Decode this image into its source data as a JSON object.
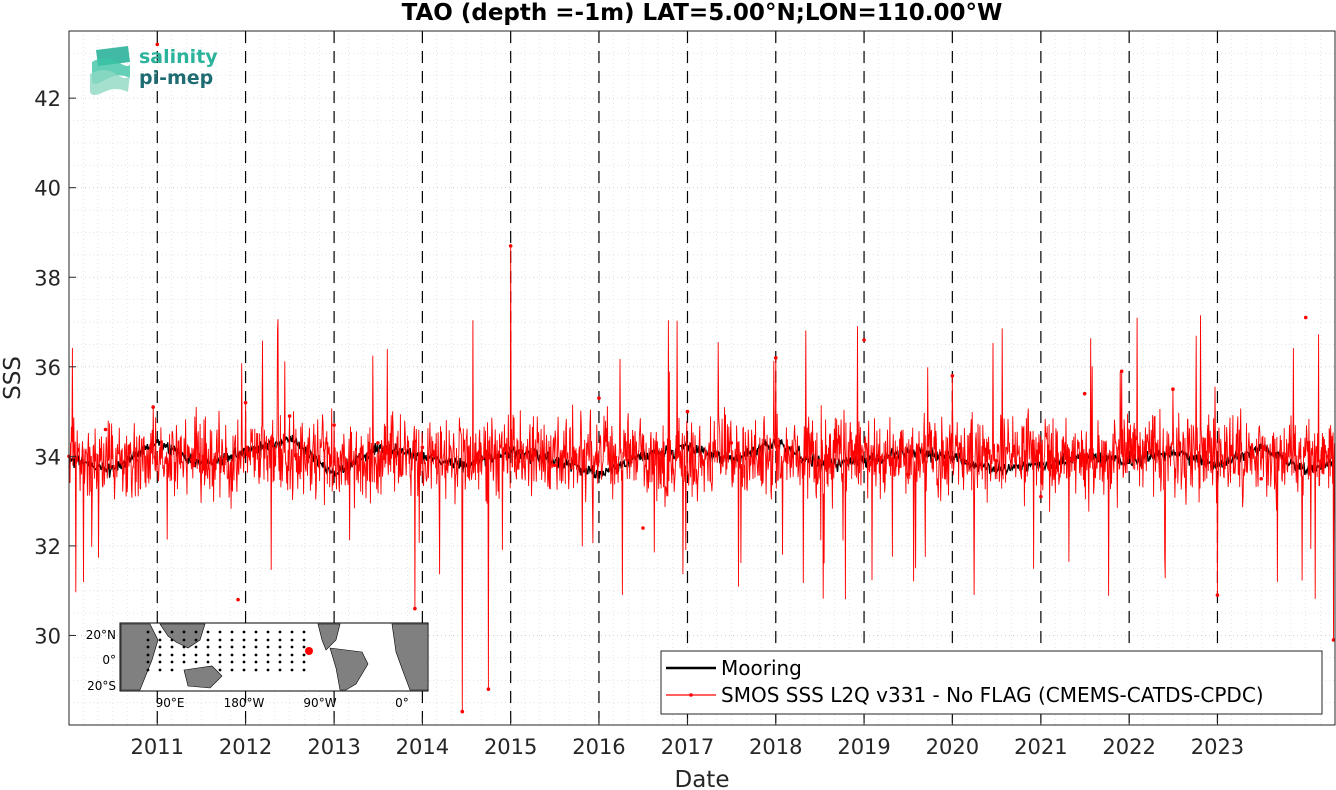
{
  "chart_data": {
    "type": "line",
    "title": "TAO (depth =-1m) LAT=5.00°N;LON=110.00°W",
    "xlabel": "Date",
    "ylabel": "SSS",
    "xlim": [
      "2010-01-01",
      "2024-05-01"
    ],
    "ylim": [
      28.0,
      43.5
    ],
    "x_ticks": [
      "2011",
      "2012",
      "2013",
      "2014",
      "2015",
      "2016",
      "2017",
      "2018",
      "2019",
      "2020",
      "2021",
      "2022",
      "2023"
    ],
    "y_ticks": [
      30,
      32,
      34,
      36,
      38,
      40,
      42
    ],
    "grid": true,
    "legend_position": "bottom-right",
    "series": [
      {
        "name": "Mooring",
        "color": "#000000",
        "x": [
          "2010-01-01",
          "2010-07-01",
          "2011-01-01",
          "2011-07-01",
          "2012-01-01",
          "2012-07-01",
          "2013-01-01",
          "2013-07-01",
          "2014-01-01",
          "2014-07-01",
          "2015-01-01",
          "2015-07-01",
          "2016-01-01",
          "2016-07-01",
          "2017-01-01",
          "2017-07-01",
          "2018-01-01",
          "2018-07-01",
          "2019-01-01",
          "2019-07-01",
          "2020-01-01",
          "2020-07-01",
          "2021-01-01",
          "2021-07-01",
          "2022-01-01",
          "2022-07-01",
          "2023-01-01",
          "2023-07-01",
          "2024-01-01",
          "2024-05-01"
        ],
        "y": [
          33.9,
          33.7,
          34.3,
          33.8,
          34.1,
          34.4,
          33.6,
          34.2,
          34.0,
          33.8,
          34.1,
          33.9,
          33.6,
          34.0,
          34.2,
          33.9,
          34.3,
          33.8,
          33.9,
          34.1,
          34.0,
          33.7,
          33.8,
          34.0,
          33.9,
          34.1,
          33.8,
          34.2,
          33.7,
          33.9
        ]
      },
      {
        "name": "SMOS SSS L2Q v331 - No FLAG  (CMEMS-CATDS-CPDC)",
        "color": "#ff0000",
        "x": [
          "2010-01-01",
          "2010-06-01",
          "2010-12-15",
          "2011-01-01",
          "2011-06-01",
          "2011-12-01",
          "2012-01-01",
          "2012-07-01",
          "2013-01-01",
          "2013-07-01",
          "2013-12-01",
          "2014-01-01",
          "2014-06-15",
          "2014-10-01",
          "2015-01-01",
          "2015-07-01",
          "2016-01-01",
          "2016-07-01",
          "2017-01-01",
          "2017-07-01",
          "2018-01-01",
          "2018-07-01",
          "2019-01-01",
          "2019-07-01",
          "2020-01-01",
          "2020-07-01",
          "2021-01-01",
          "2021-07-01",
          "2021-12-01",
          "2022-07-01",
          "2023-01-01",
          "2023-07-01",
          "2024-01-01",
          "2024-04-25"
        ],
        "y": [
          34.0,
          34.6,
          35.1,
          43.2,
          33.8,
          30.8,
          35.2,
          34.9,
          34.7,
          34.3,
          30.6,
          34.2,
          28.3,
          28.8,
          38.7,
          33.8,
          35.3,
          32.4,
          35.0,
          34.3,
          36.2,
          33.9,
          36.6,
          33.6,
          35.8,
          33.9,
          33.1,
          35.4,
          35.9,
          35.5,
          30.9,
          33.5,
          37.1,
          29.9
        ]
      }
    ],
    "inset_map": {
      "lat_labels": [
        "20°N",
        "0°",
        "20°S"
      ],
      "lon_labels": [
        "90°E",
        "180°W",
        "90°W",
        "0°"
      ]
    }
  },
  "logo": {
    "line1": "salinity",
    "line2": "pi-mep"
  }
}
